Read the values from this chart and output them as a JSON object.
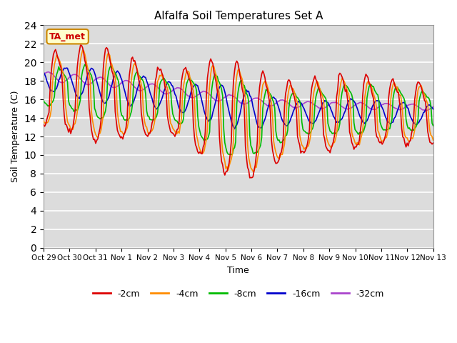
{
  "title": "Alfalfa Soil Temperatures Set A",
  "xlabel": "Time",
  "ylabel": "Soil Temperature (C)",
  "ylim": [
    0,
    24
  ],
  "yticks": [
    0,
    2,
    4,
    6,
    8,
    10,
    12,
    14,
    16,
    18,
    20,
    22,
    24
  ],
  "xtick_labels": [
    "Oct 29",
    "Oct 30",
    "Oct 31",
    "Nov 1",
    "Nov 2",
    "Nov 3",
    "Nov 4",
    "Nov 5",
    "Nov 6",
    "Nov 7",
    "Nov 8",
    "Nov 9",
    "Nov 10",
    "Nov 11",
    "Nov 12",
    "Nov 13"
  ],
  "colors": {
    "neg2cm": "#dd0000",
    "neg4cm": "#ff8c00",
    "neg8cm": "#00bb00",
    "neg16cm": "#0000cc",
    "neg32cm": "#aa44cc"
  },
  "legend_labels": [
    "-2cm",
    "-4cm",
    "-8cm",
    "-16cm",
    "-32cm"
  ],
  "legend_colors": [
    "#dd0000",
    "#ff8c00",
    "#00bb00",
    "#0000cc",
    "#aa44cc"
  ],
  "ta_met_label": "TA_met",
  "ta_met_bg": "#ffffcc",
  "ta_met_border": "#cc8800",
  "ta_met_text": "#cc0000",
  "bg_color": "#dcdcdc",
  "grid_color": "#ffffff",
  "lw": 1.2
}
